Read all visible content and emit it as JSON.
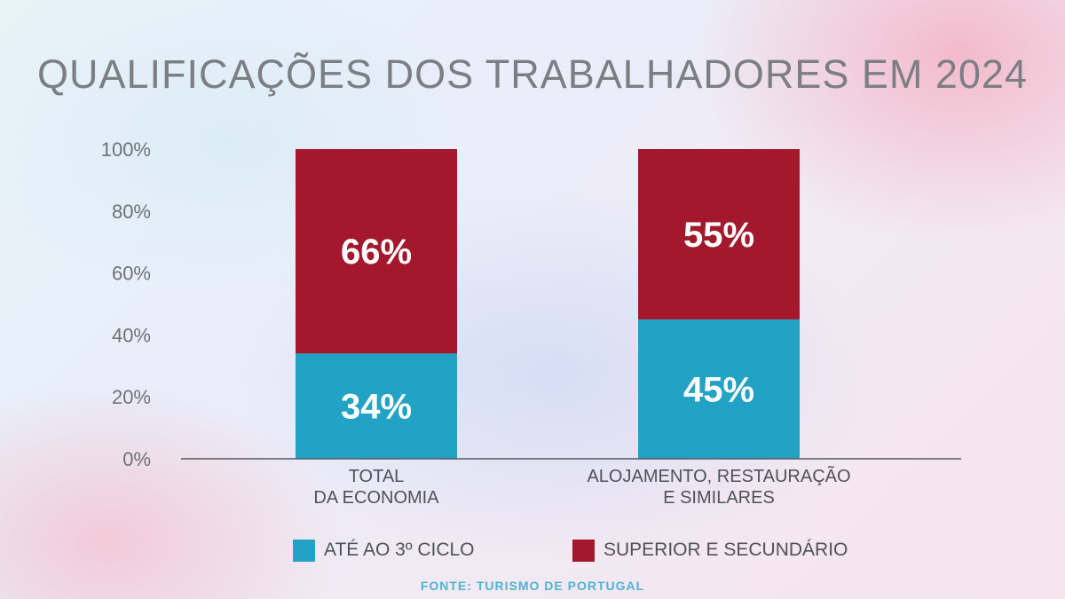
{
  "title": "QUALIFICAÇÕES DOS TRABALHADORES EM 2024",
  "source": "FONTE: TURISMO  DE  PORTUGAL",
  "colors": {
    "ate_3_ciclo": "#22a2c4",
    "superior_secundario": "#a3182c",
    "axis_text": "#6e7276",
    "bar_label": "#ffffff"
  },
  "chart_data": {
    "type": "bar",
    "stacked": true,
    "categories": [
      [
        "TOTAL",
        "DA ECONOMIA"
      ],
      [
        "ALOJAMENTO, RESTAURAÇÃO",
        "E SIMILARES"
      ]
    ],
    "series": [
      {
        "name": "ATÉ AO 3º CICLO",
        "values": [
          34,
          45
        ],
        "labels": [
          "34%",
          "45%"
        ],
        "color": "#22a2c4"
      },
      {
        "name": "SUPERIOR E SECUNDÁRIO",
        "values": [
          66,
          55
        ],
        "labels": [
          "66%",
          "55%"
        ],
        "color": "#a3182c"
      }
    ],
    "ylim": [
      0,
      100
    ],
    "yticks": [
      0,
      20,
      40,
      60,
      80,
      100
    ],
    "ytick_labels": [
      "0%",
      "20%",
      "40%",
      "60%",
      "80%",
      "100%"
    ],
    "grid": false,
    "legend_position": "bottom"
  }
}
